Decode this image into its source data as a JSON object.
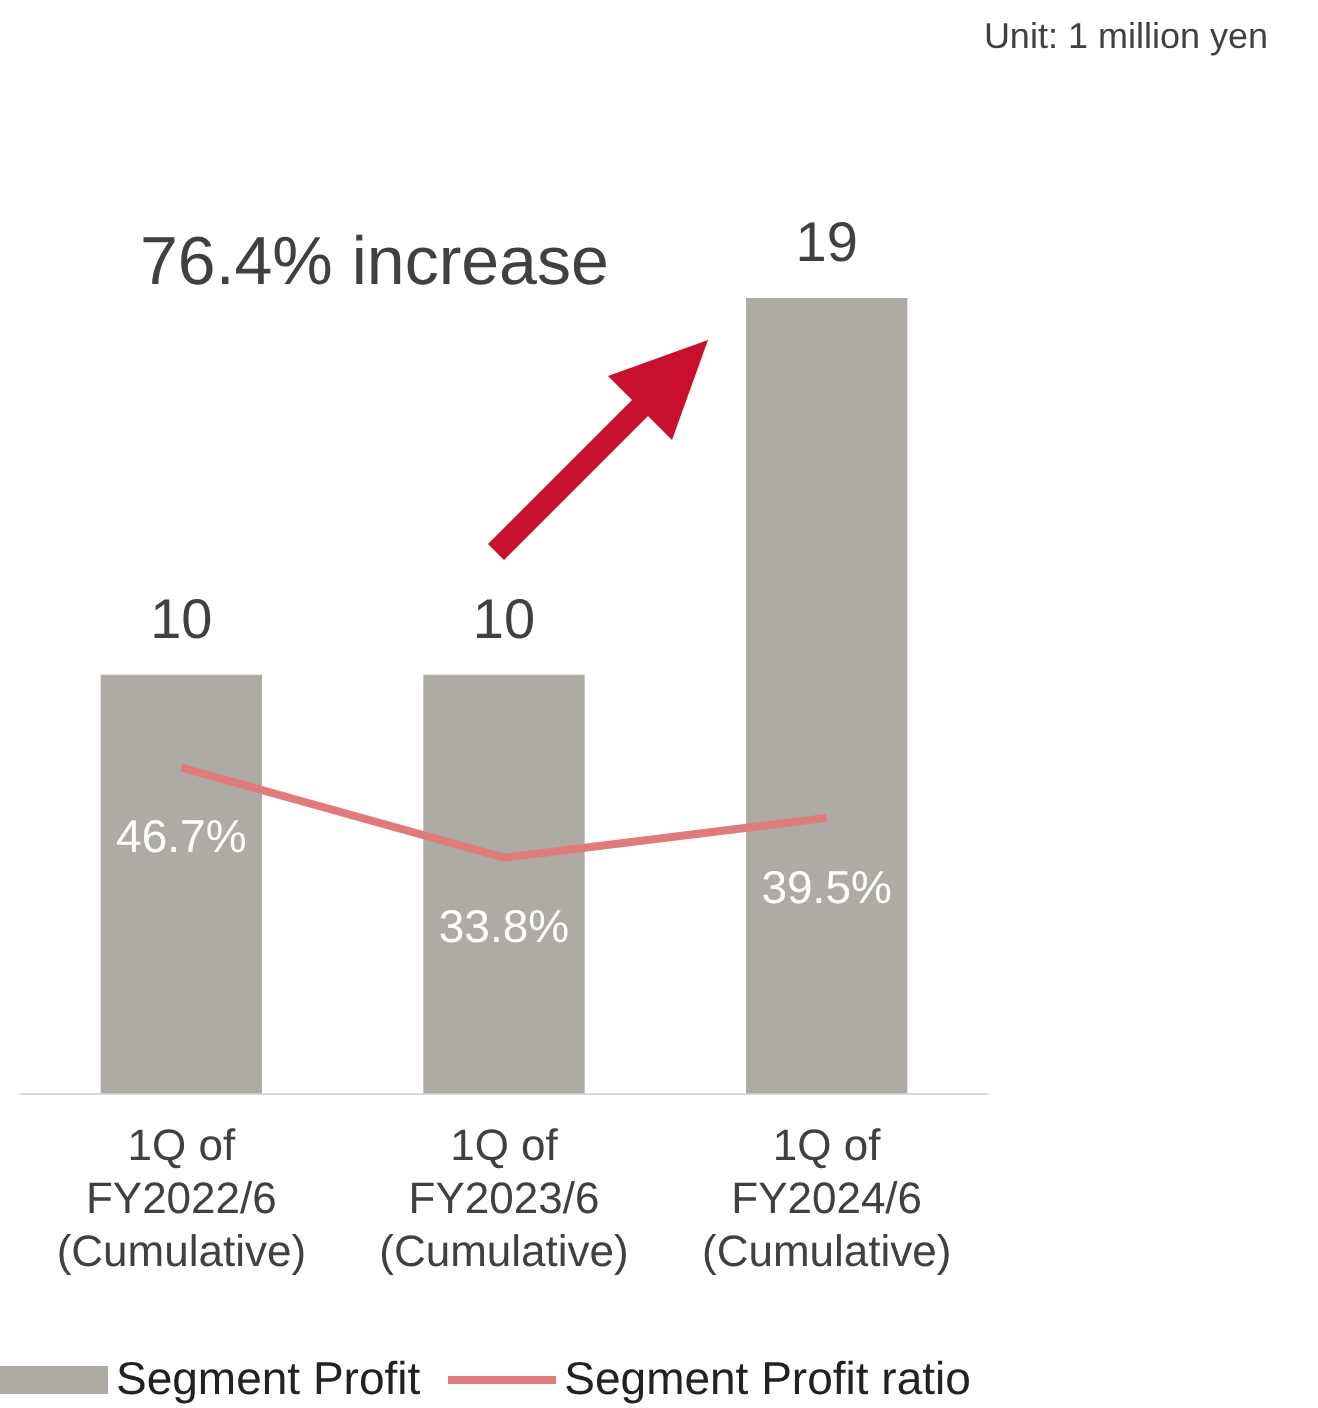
{
  "chart_data": {
    "type": "bar",
    "categories": [
      "1Q of\nFY2022/6\n(Cumulative)",
      "1Q of\nFY2023/6\n(Cumulative)",
      "1Q of\nFY2024/6\n(Cumulative)"
    ],
    "series": [
      {
        "name": "Segment Profit",
        "color": "#aeaba5",
        "values": [
          10,
          10,
          19
        ],
        "value_labels": [
          "10",
          "10",
          "19"
        ]
      },
      {
        "name": "Segment Profit ratio",
        "type": "line",
        "axis": "y2",
        "color": "#e07b7b",
        "values": [
          46.7,
          33.8,
          39.5
        ],
        "value_labels": [
          "46.7%",
          "33.8%",
          "39.5%"
        ]
      }
    ],
    "tick_labels": false,
    "annotations": [
      "Unit: 1 million yen",
      "76.4% increase"
    ],
    "legend": "bottom",
    "grid": false,
    "marker": "none"
  }
}
